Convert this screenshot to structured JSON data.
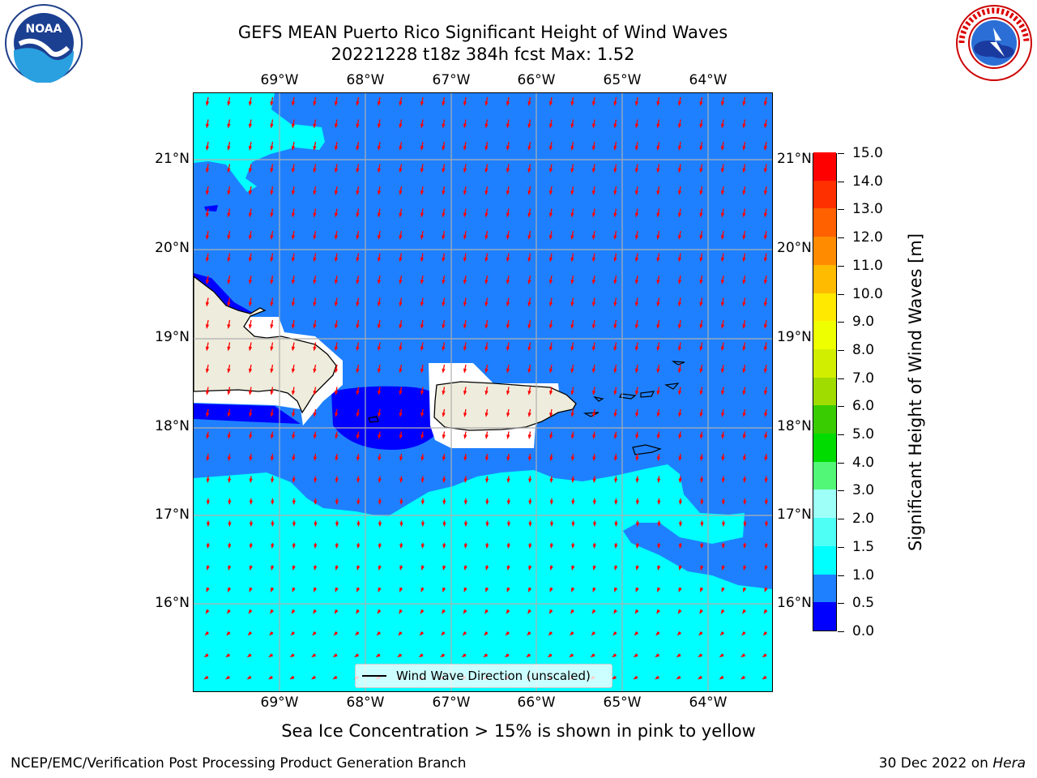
{
  "header": {
    "title_line1": "GEFS MEAN Puerto Rico Significant Height of Wind Waves",
    "title_line2": "20221228 t18z 384h fcst   Max: 1.52"
  },
  "logos": {
    "noaa_text": "NOAA",
    "noaa_ring_text": "NATIONAL OCEANIC AND ATMOSPHERIC ADMINISTRATION · U.S. DEPARTMENT OF COMMERCE",
    "nws_ring_text": "NATIONAL WEATHER SERVICE"
  },
  "map": {
    "lon_labels": [
      "69°W",
      "68°W",
      "67°W",
      "66°W",
      "65°W",
      "64°W"
    ],
    "lat_labels": [
      "21°N",
      "20°N",
      "19°N",
      "18°N",
      "17°N",
      "16°N"
    ],
    "legend_label": "Wind Wave Direction (unscaled)",
    "colors": {
      "land": "#eeecdc",
      "low": "#0000ff",
      "mid": "#1e80ff",
      "high": "#00ffff",
      "arrow": "#ff0000"
    }
  },
  "colorbar": {
    "title": "Significant Height of Wind Waves [m]",
    "levels": [
      "0.0",
      "0.5",
      "1.0",
      "1.5",
      "2.0",
      "3.0",
      "4.0",
      "5.0",
      "6.0",
      "7.0",
      "8.0",
      "9.0",
      "10.0",
      "11.0",
      "12.0",
      "13.0",
      "14.0",
      "15.0"
    ],
    "colors": [
      "#0000ff",
      "#1e80ff",
      "#00ffff",
      "#4efff6",
      "#9efff9",
      "#53f778",
      "#00dc00",
      "#39cc00",
      "#a0dc00",
      "#d2ee00",
      "#eeff00",
      "#ffe900",
      "#ffbb00",
      "#ff8c00",
      "#ff6000",
      "#ff3000",
      "#ff0000"
    ]
  },
  "footer": {
    "sea_ice_note": "Sea Ice Concentration > 15% is shown in pink to yellow",
    "branch": "NCEP/EMC/Verification Post Processing Product Generation Branch",
    "date": "30 Dec 2022 on ",
    "host": "Hera"
  }
}
